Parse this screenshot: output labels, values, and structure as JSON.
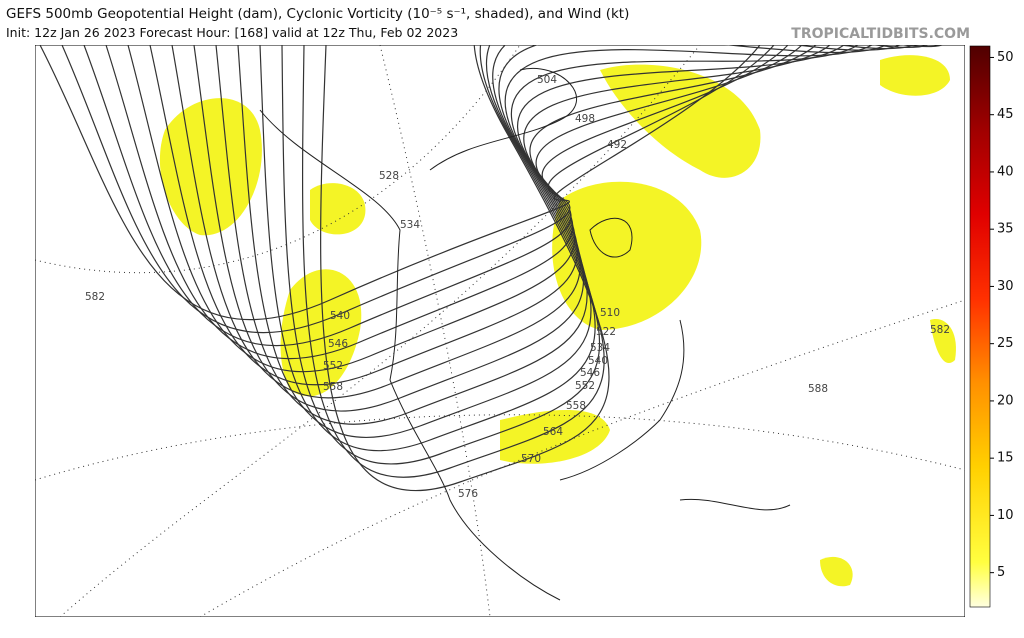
{
  "header": {
    "title": "GEFS 500mb Geopotential Height (dam), Cyclonic Vorticity (10⁻⁵ s⁻¹, shaded), and Wind (kt)",
    "subtitle": "Init: 12z Jan 26 2023   Forecast Hour: [168]   valid at 12z Thu, Feb 02 2023",
    "watermark": "TROPICALTIDBITS.COM"
  },
  "colorbar": {
    "lim": [
      2,
      51
    ],
    "ticks": [
      5,
      10,
      15,
      20,
      25,
      30,
      35,
      40,
      45,
      50
    ]
  },
  "contour_labels": [
    504,
    498,
    492,
    528,
    534,
    582,
    540,
    546,
    552,
    558,
    510,
    522,
    534,
    540,
    546,
    552,
    558,
    564,
    570,
    576,
    588,
    582
  ]
}
